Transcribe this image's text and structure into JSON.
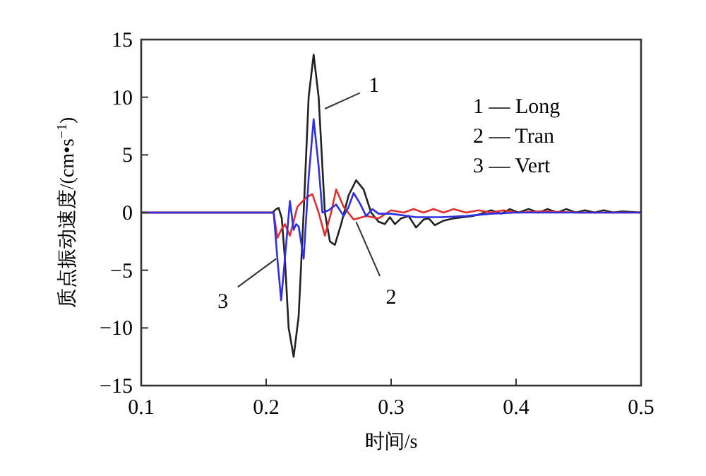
{
  "chart_data": {
    "type": "line",
    "xlabel": "时间/s",
    "ylabel": "质点振动速度/(cm•s$^{−1}$)",
    "xlim": [
      0.1,
      0.5
    ],
    "xticks": [
      0.1,
      0.2,
      0.3,
      0.4,
      0.5
    ],
    "ylim": [
      -15,
      15
    ],
    "yticks": [
      -15,
      -10,
      -5,
      0,
      5,
      10,
      15
    ],
    "grid": false,
    "marker": "none",
    "line_style": "solid",
    "series": [
      {
        "color": "#222222",
        "x": [
          0.1,
          0.205,
          0.208,
          0.21,
          0.2125,
          0.215,
          0.218,
          0.222,
          0.226,
          0.23,
          0.234,
          0.238,
          0.242,
          0.247,
          0.251,
          0.255,
          0.26,
          0.266,
          0.272,
          0.278,
          0.284,
          0.29,
          0.295,
          0.299,
          0.303,
          0.308,
          0.314,
          0.32,
          0.326,
          0.33,
          0.335,
          0.342,
          0.35,
          0.358,
          0.365,
          0.372,
          0.38,
          0.388,
          0.395,
          0.402,
          0.41,
          0.418,
          0.425,
          0.433,
          0.44,
          0.448,
          0.455,
          0.463,
          0.47,
          0.478,
          0.485,
          0.5
        ],
        "values": [
          0,
          0,
          0.3,
          0.4,
          -0.5,
          -4,
          -10,
          -12.5,
          -9,
          0,
          10,
          13.7,
          10,
          0,
          -2.5,
          -2.8,
          -1,
          1.5,
          2.8,
          2,
          0,
          -0.8,
          -1,
          -0.4,
          -1,
          -0.5,
          -0.3,
          -1.3,
          -0.6,
          -0.5,
          -1.1,
          -0.7,
          -0.5,
          -0.4,
          -0.3,
          -0.1,
          0.2,
          -0.1,
          0.3,
          0,
          0.3,
          0,
          0.3,
          0,
          0.3,
          0,
          0.2,
          0,
          0.2,
          0,
          0.1,
          0
        ]
      },
      {
        "color": "#e03030",
        "x": [
          0.1,
          0.206,
          0.209,
          0.212,
          0.215,
          0.219,
          0.225,
          0.232,
          0.237,
          0.242,
          0.247,
          0.252,
          0.256,
          0.262,
          0.27,
          0.28,
          0.29,
          0.3,
          0.31,
          0.318,
          0.326,
          0.334,
          0.342,
          0.35,
          0.36,
          0.37,
          0.38,
          0.39,
          0.4,
          0.42,
          0.45,
          0.5
        ],
        "values": [
          0,
          0,
          -2.2,
          -1.5,
          -1,
          -2,
          0.5,
          1.3,
          1.6,
          0,
          -2,
          0,
          2,
          0.5,
          -0.6,
          -0.3,
          -0.5,
          0.2,
          0,
          0.3,
          0,
          0.3,
          0,
          0.3,
          0,
          0.2,
          0,
          0.2,
          0,
          0.1,
          0,
          0
        ]
      },
      {
        "color": "#3030e0",
        "x": [
          0.1,
          0.206,
          0.209,
          0.212,
          0.215,
          0.219,
          0.222,
          0.224,
          0.226,
          0.23,
          0.234,
          0.238,
          0.242,
          0.245,
          0.25,
          0.256,
          0.262,
          0.266,
          0.27,
          0.275,
          0.28,
          0.285,
          0.29,
          0.3,
          0.32,
          0.34,
          0.36,
          0.38,
          0.4,
          0.45,
          0.5
        ],
        "values": [
          0,
          0,
          -4,
          -7.6,
          -4,
          1,
          -1.5,
          -1,
          -1.2,
          -4,
          3,
          8.1,
          4,
          0,
          0.2,
          0.7,
          -0.3,
          0.5,
          1.7,
          0.8,
          -0.3,
          0.3,
          -0.1,
          -0.1,
          -0.4,
          -0.4,
          -0.3,
          -0.1,
          0,
          0,
          0
        ]
      }
    ],
    "annotations": [
      {
        "text": "1",
        "x": 0.247,
        "y": 9
      },
      {
        "text": "2",
        "x": 0.272,
        "y": -0.8
      },
      {
        "text": "3",
        "x": 0.208,
        "y": -4
      },
      "1 — Long",
      "2 — Tran",
      "3 — Vert"
    ]
  }
}
